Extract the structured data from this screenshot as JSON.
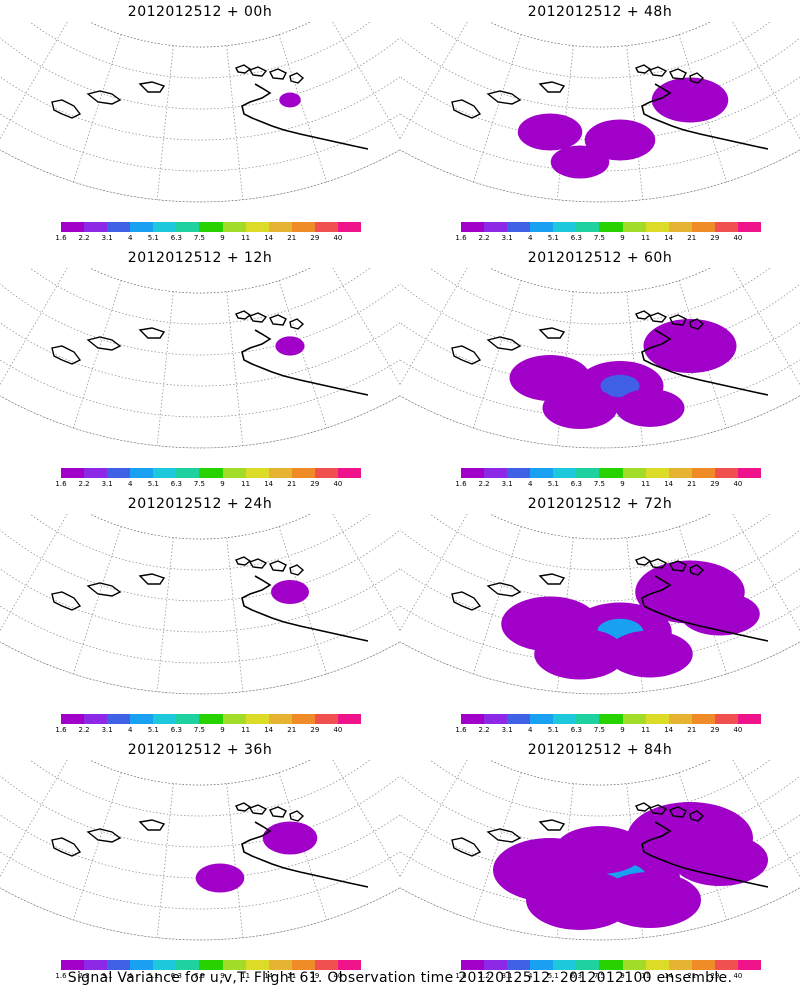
{
  "panels": [
    {
      "title": "2012012512 + 00h",
      "spread": 0.05
    },
    {
      "title": "2012012512 + 48h",
      "spread": 0.55
    },
    {
      "title": "2012012512 + 12h",
      "spread": 0.12
    },
    {
      "title": "2012012512 + 60h",
      "spread": 0.7
    },
    {
      "title": "2012012512 + 24h",
      "spread": 0.2
    },
    {
      "title": "2012012512 + 72h",
      "spread": 0.85
    },
    {
      "title": "2012012512 + 36h",
      "spread": 0.35
    },
    {
      "title": "2012012512 + 84h",
      "spread": 1.0
    }
  ],
  "colorbar": {
    "labels": [
      "1.6",
      "2.2",
      "3.1",
      "4",
      "5.1",
      "6.3",
      "7.5",
      "9",
      "11",
      "14",
      "21",
      "29",
      "40"
    ],
    "colors": [
      "#a000c8",
      "#8c28e6",
      "#4060e6",
      "#1aa0f0",
      "#1ec8dc",
      "#1ed2a0",
      "#28d200",
      "#a0dc28",
      "#dcdc28",
      "#e6b432",
      "#f08c28",
      "#f05050",
      "#f0148c"
    ]
  },
  "caption": "Signal Variance for u,v,T. Flight 61. Observation time 2012012512. 2012012100 ensemble."
}
